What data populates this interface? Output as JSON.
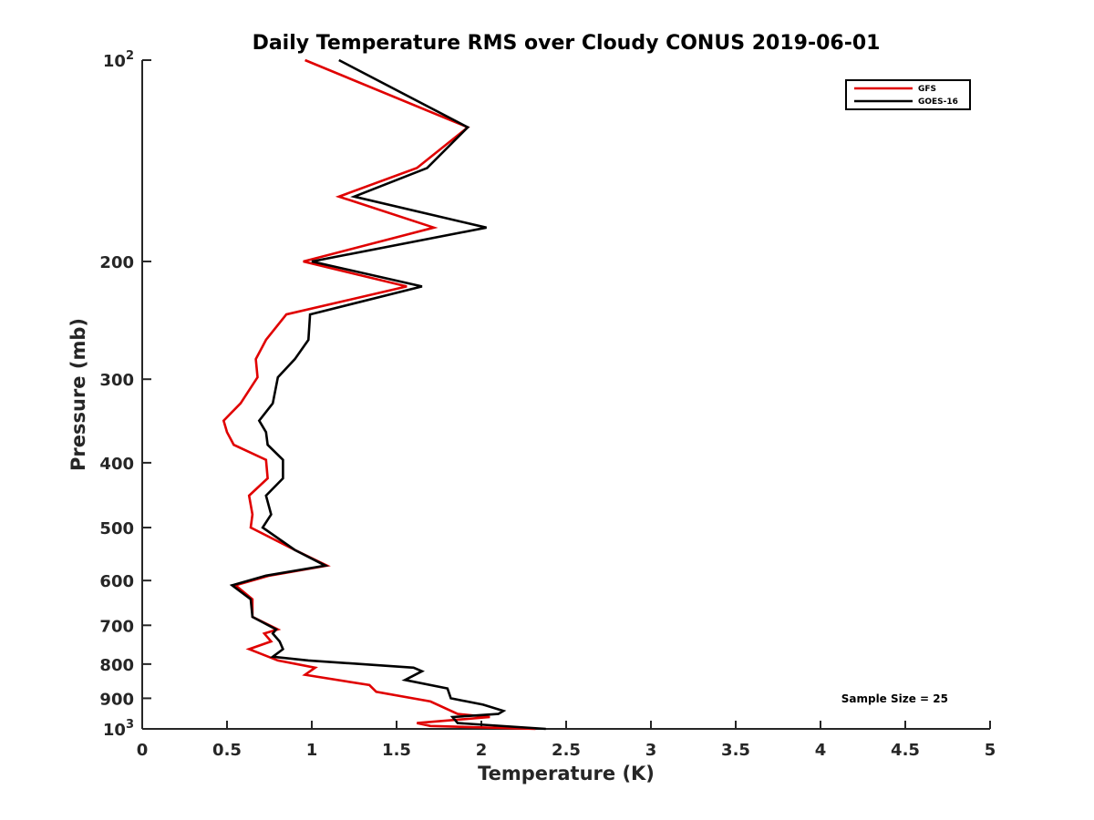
{
  "chart_data": {
    "type": "line",
    "title": "Daily Temperature RMS over Cloudy CONUS 2019-06-01",
    "xlabel": "Temperature (K)",
    "ylabel": "Pressure (mb)",
    "xlim": [
      0,
      5
    ],
    "ylim": [
      100,
      1000
    ],
    "yscale": "log",
    "yreversed": true,
    "xticks": [
      0,
      0.5,
      1,
      1.5,
      2,
      2.5,
      3,
      3.5,
      4,
      4.5,
      5
    ],
    "xtick_labels": [
      "0",
      "0.5",
      "1",
      "1.5",
      "2",
      "2.5",
      "3",
      "3.5",
      "4",
      "4.5",
      "5"
    ],
    "yticks": [
      {
        "value": 100,
        "base": "10",
        "exp": "2"
      },
      {
        "value": 200,
        "label": "200"
      },
      {
        "value": 300,
        "label": "300"
      },
      {
        "value": 400,
        "label": "400"
      },
      {
        "value": 500,
        "label": "500"
      },
      {
        "value": 600,
        "label": "600"
      },
      {
        "value": 700,
        "label": "700"
      },
      {
        "value": 800,
        "label": "800"
      },
      {
        "value": 900,
        "label": "900"
      },
      {
        "value": 1000,
        "base": "10",
        "exp": "3"
      }
    ],
    "legend_position": "top-right",
    "annotation": "Sample Size = 25",
    "series": [
      {
        "name": "GFS",
        "color": "#e00000",
        "x": [
          0.96,
          1.92,
          1.62,
          1.16,
          1.72,
          0.95,
          1.56,
          0.85,
          0.73,
          0.67,
          0.68,
          0.58,
          0.48,
          0.5,
          0.54,
          0.73,
          0.74,
          0.63,
          0.65,
          0.64,
          0.9,
          1.09,
          0.75,
          0.55,
          0.65,
          0.65,
          0.8,
          0.72,
          0.76,
          0.63,
          0.8,
          1.02,
          0.96,
          1.34,
          1.38,
          1.7,
          1.86,
          2.05,
          1.62,
          1.7,
          2.32
        ],
        "y": [
          100,
          126,
          145,
          160,
          178,
          200,
          218,
          240,
          262,
          280,
          298,
          326,
          346,
          360,
          376,
          396,
          422,
          448,
          478,
          500,
          540,
          570,
          590,
          610,
          640,
          680,
          710,
          720,
          740,
          760,
          790,
          810,
          830,
          860,
          880,
          910,
          950,
          960,
          980,
          990,
          1000
        ]
      },
      {
        "name": "GOES-16",
        "color": "#000000",
        "x": [
          1.16,
          1.92,
          1.68,
          1.25,
          2.03,
          1.0,
          1.65,
          0.99,
          0.98,
          0.9,
          0.8,
          0.77,
          0.69,
          0.73,
          0.74,
          0.83,
          0.83,
          0.73,
          0.76,
          0.71,
          0.9,
          1.08,
          0.73,
          0.53,
          0.64,
          0.65,
          0.79,
          0.77,
          0.81,
          0.83,
          0.77,
          0.98,
          1.6,
          1.65,
          1.55,
          1.8,
          1.82,
          2.01,
          2.13,
          2.1,
          1.83,
          1.86,
          2.38
        ],
        "y": [
          100,
          126,
          145,
          160,
          178,
          200,
          218,
          240,
          262,
          280,
          298,
          326,
          346,
          360,
          376,
          396,
          422,
          448,
          478,
          500,
          540,
          570,
          590,
          610,
          640,
          680,
          710,
          720,
          740,
          760,
          780,
          790,
          810,
          820,
          845,
          870,
          900,
          920,
          940,
          950,
          960,
          980,
          1000
        ]
      }
    ]
  }
}
